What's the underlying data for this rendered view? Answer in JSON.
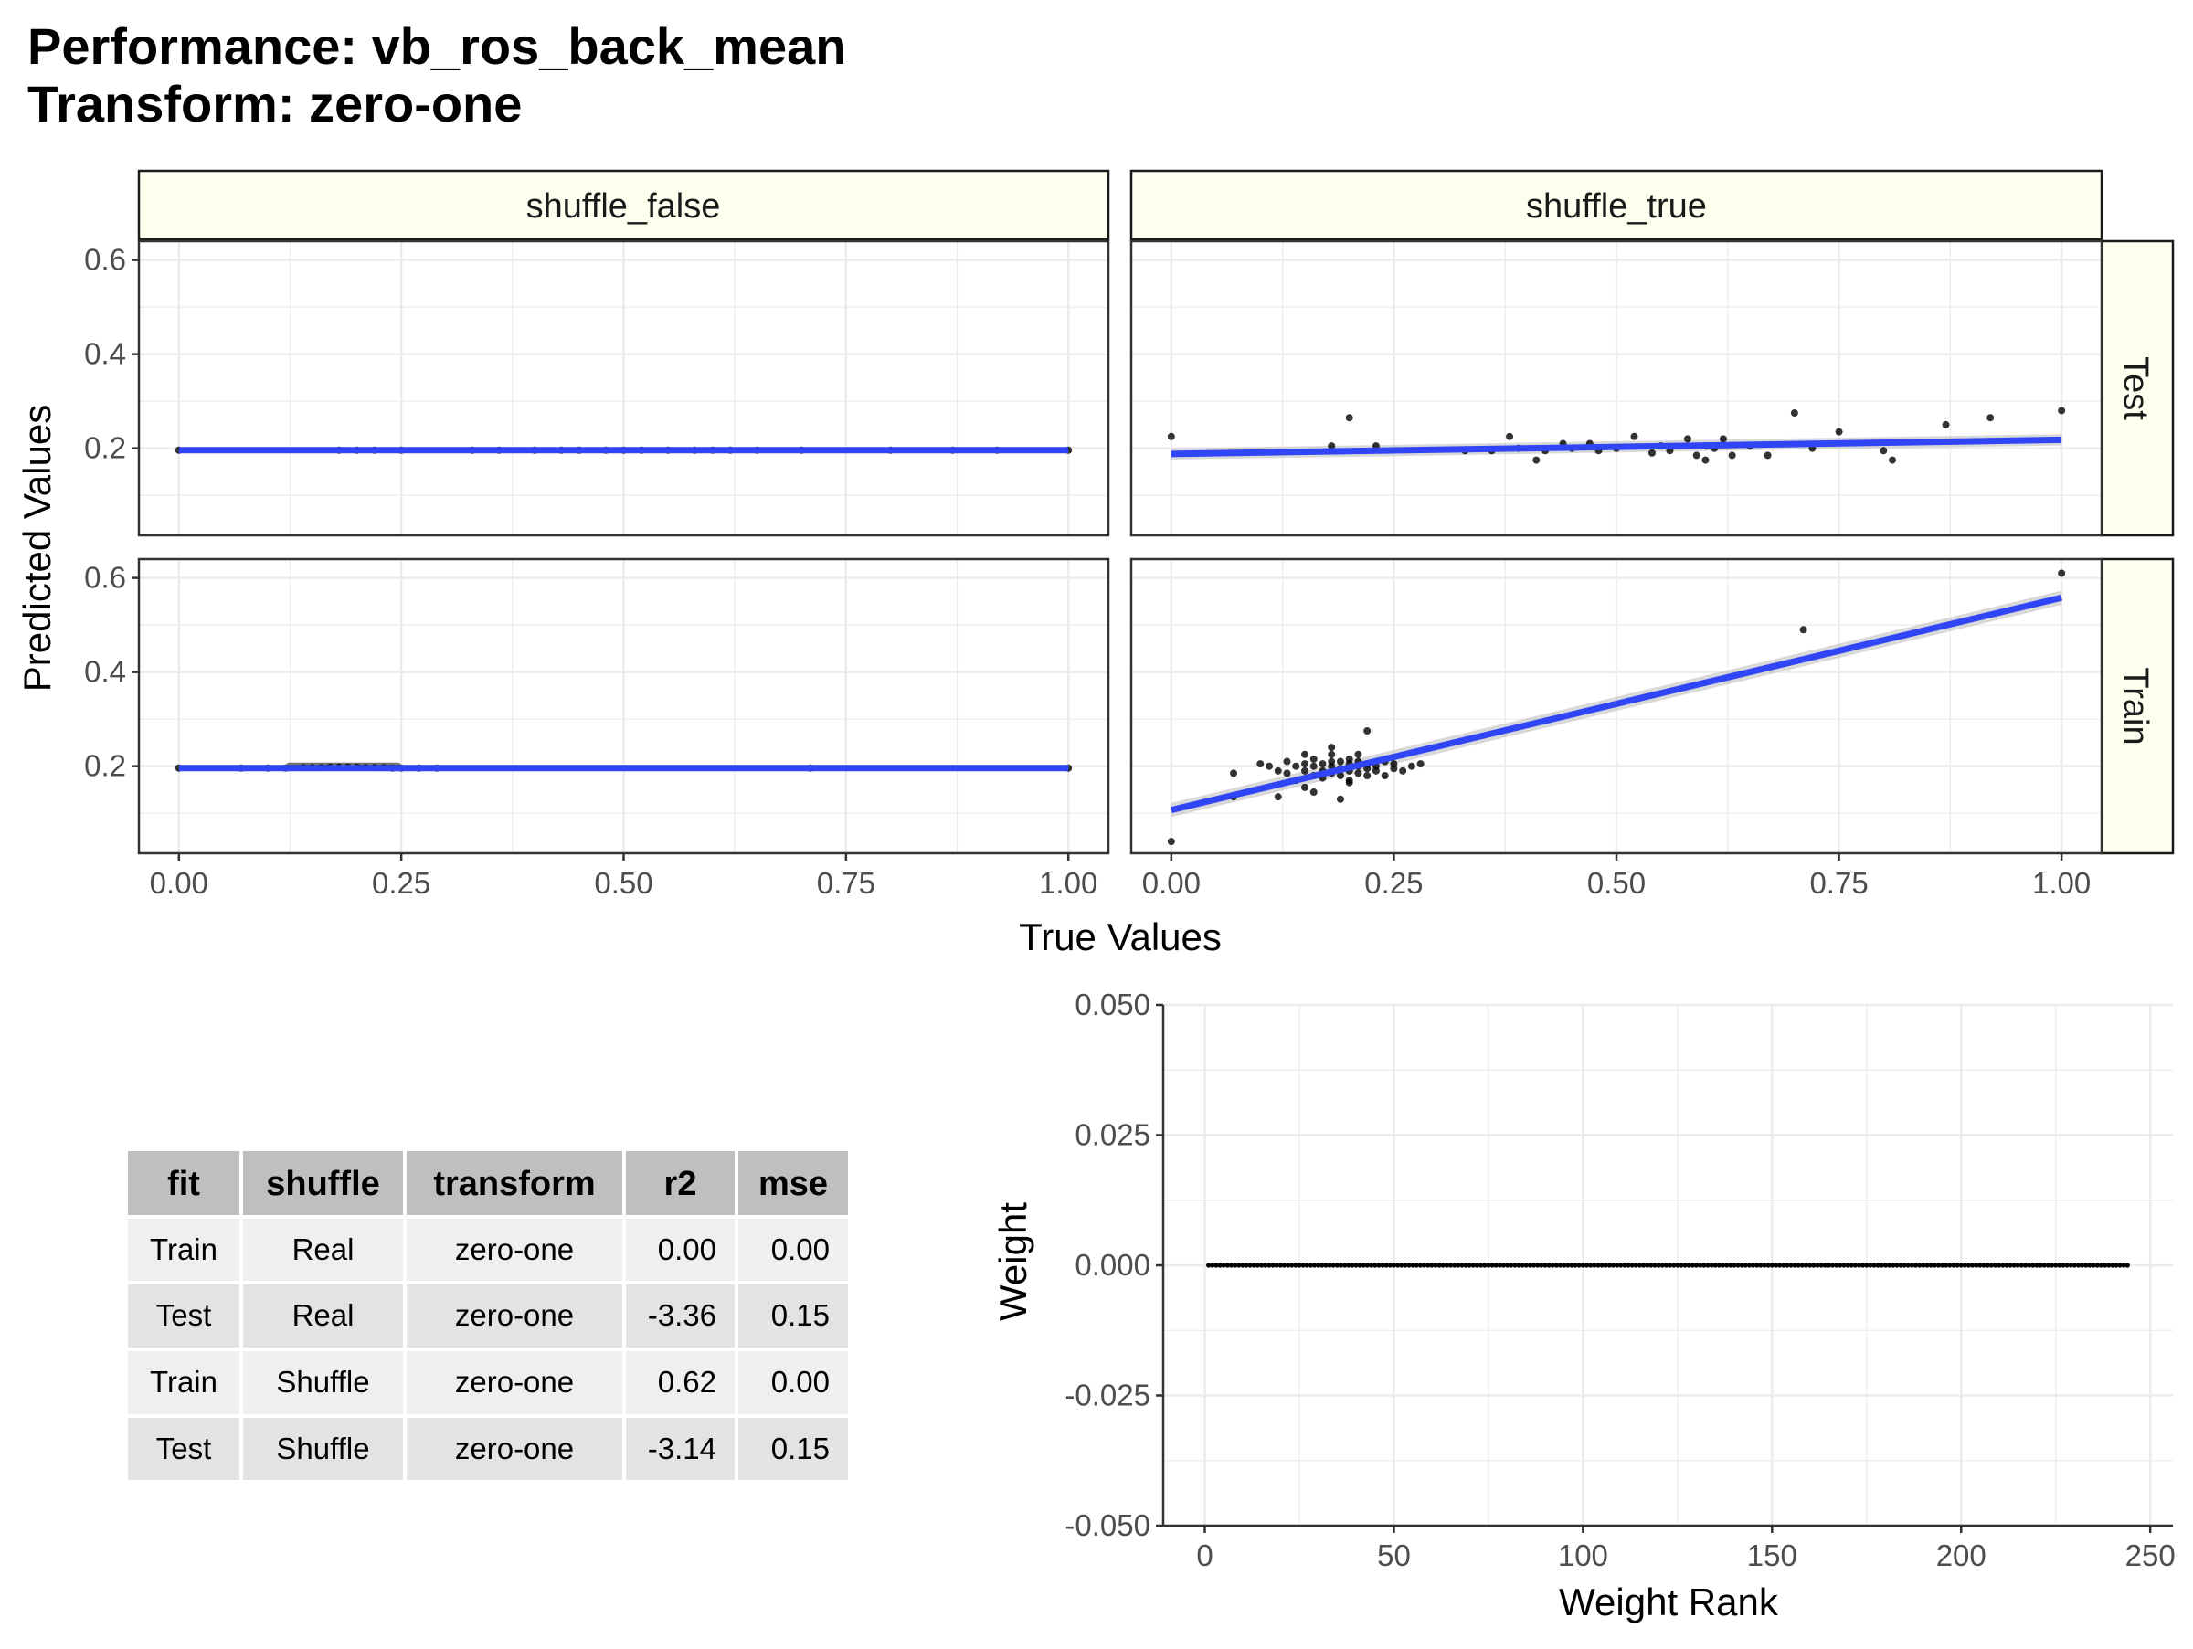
{
  "title": {
    "line1": "Performance: vb_ros_back_mean",
    "line2": "Transform: zero-one"
  },
  "facets": {
    "columns": [
      "shuffle_false",
      "shuffle_true"
    ],
    "rows": [
      "Test",
      "Train"
    ],
    "xlabel": "True Values",
    "ylabel": "Predicted Values",
    "x_ticks": [
      "0.00",
      "0.25",
      "0.50",
      "0.75",
      "1.00"
    ],
    "y_ticks": [
      "0.2",
      "0.4",
      "0.6"
    ]
  },
  "weights": {
    "xlabel": "Weight Rank",
    "ylabel": "Weight",
    "x_ticks": [
      "0",
      "50",
      "100",
      "150",
      "200",
      "250"
    ],
    "y_ticks": [
      "0.050",
      "0.025",
      "0.000",
      "-0.025",
      "-0.050"
    ]
  },
  "table": {
    "headers": [
      "fit",
      "shuffle",
      "transform",
      "r2",
      "mse"
    ],
    "rows": [
      [
        "Train",
        "Real",
        "zero-one",
        "0.00",
        "0.00"
      ],
      [
        "Test",
        "Real",
        "zero-one",
        "-3.36",
        "0.15"
      ],
      [
        "Train",
        "Shuffle",
        "zero-one",
        "0.62",
        "0.00"
      ],
      [
        "Test",
        "Shuffle",
        "zero-one",
        "-3.14",
        "0.15"
      ]
    ]
  },
  "colors": {
    "fit_line": "#3045f5",
    "points": "#000000",
    "strip_fill": "#fffff0",
    "grid": "#ebebeb",
    "ribbon": "#bfbfbf"
  },
  "chart_data": [
    {
      "type": "scatter",
      "facet": {
        "column": "shuffle_false",
        "row": "Test"
      },
      "xlim": [
        -0.045,
        1.045
      ],
      "ylim": [
        0.015,
        0.64
      ],
      "x": [
        0.0,
        0.18,
        0.2,
        0.22,
        0.25,
        0.33,
        0.36,
        0.4,
        0.43,
        0.45,
        0.48,
        0.5,
        0.52,
        0.55,
        0.58,
        0.6,
        0.62,
        0.65,
        0.7,
        0.8,
        0.87,
        0.92,
        1.0
      ],
      "y": [
        0.196,
        0.196,
        0.196,
        0.196,
        0.196,
        0.196,
        0.196,
        0.196,
        0.196,
        0.196,
        0.196,
        0.196,
        0.196,
        0.196,
        0.196,
        0.196,
        0.196,
        0.196,
        0.196,
        0.196,
        0.196,
        0.196,
        0.196
      ],
      "fit": {
        "x": [
          0.0,
          1.0
        ],
        "y": [
          0.196,
          0.196
        ]
      }
    },
    {
      "type": "scatter",
      "facet": {
        "column": "shuffle_true",
        "row": "Test"
      },
      "xlim": [
        -0.045,
        1.045
      ],
      "ylim": [
        0.015,
        0.64
      ],
      "x": [
        0.0,
        0.18,
        0.2,
        0.23,
        0.33,
        0.36,
        0.38,
        0.39,
        0.41,
        0.42,
        0.44,
        0.45,
        0.47,
        0.48,
        0.5,
        0.52,
        0.54,
        0.55,
        0.56,
        0.58,
        0.59,
        0.6,
        0.6,
        0.61,
        0.62,
        0.63,
        0.65,
        0.67,
        0.7,
        0.72,
        0.75,
        0.8,
        0.81,
        0.87,
        0.92,
        1.0
      ],
      "y": [
        0.225,
        0.205,
        0.265,
        0.205,
        0.195,
        0.195,
        0.225,
        0.2,
        0.175,
        0.195,
        0.21,
        0.2,
        0.21,
        0.195,
        0.2,
        0.225,
        0.19,
        0.205,
        0.195,
        0.22,
        0.185,
        0.175,
        0.205,
        0.2,
        0.22,
        0.185,
        0.205,
        0.185,
        0.275,
        0.2,
        0.235,
        0.195,
        0.175,
        0.25,
        0.265,
        0.28
      ],
      "fit": {
        "x": [
          0.0,
          1.0
        ],
        "y": [
          0.188,
          0.218
        ],
        "se": 0.012
      }
    },
    {
      "type": "scatter",
      "facet": {
        "column": "shuffle_false",
        "row": "Train"
      },
      "xlim": [
        -0.045,
        1.045
      ],
      "ylim": [
        0.015,
        0.64
      ],
      "x": [
        0.0,
        0.07,
        0.1,
        0.12,
        0.14,
        0.15,
        0.16,
        0.17,
        0.18,
        0.19,
        0.2,
        0.21,
        0.22,
        0.23,
        0.24,
        0.25,
        0.27,
        0.29,
        0.71,
        1.0
      ],
      "y": [
        0.196,
        0.196,
        0.196,
        0.196,
        0.197,
        0.197,
        0.197,
        0.198,
        0.198,
        0.198,
        0.198,
        0.197,
        0.197,
        0.197,
        0.196,
        0.196,
        0.196,
        0.196,
        0.196,
        0.196
      ],
      "fit": {
        "x": [
          0.0,
          1.0
        ],
        "y": [
          0.196,
          0.196
        ]
      }
    },
    {
      "type": "scatter",
      "facet": {
        "column": "shuffle_true",
        "row": "Train"
      },
      "xlim": [
        -0.045,
        1.045
      ],
      "ylim": [
        0.015,
        0.64
      ],
      "x": [
        0.0,
        0.07,
        0.07,
        0.1,
        0.11,
        0.12,
        0.12,
        0.13,
        0.13,
        0.14,
        0.14,
        0.15,
        0.15,
        0.15,
        0.16,
        0.16,
        0.16,
        0.17,
        0.17,
        0.17,
        0.18,
        0.18,
        0.18,
        0.18,
        0.19,
        0.19,
        0.19,
        0.2,
        0.2,
        0.2,
        0.2,
        0.21,
        0.21,
        0.21,
        0.22,
        0.22,
        0.22,
        0.23,
        0.23,
        0.24,
        0.24,
        0.25,
        0.25,
        0.26,
        0.27,
        0.28,
        0.15,
        0.16,
        0.18,
        0.2,
        0.21,
        0.19,
        0.22,
        0.71,
        1.0
      ],
      "y": [
        0.04,
        0.185,
        0.135,
        0.205,
        0.2,
        0.19,
        0.135,
        0.185,
        0.21,
        0.2,
        0.17,
        0.19,
        0.205,
        0.225,
        0.18,
        0.2,
        0.215,
        0.19,
        0.205,
        0.175,
        0.2,
        0.21,
        0.185,
        0.225,
        0.195,
        0.21,
        0.18,
        0.19,
        0.205,
        0.215,
        0.17,
        0.2,
        0.185,
        0.21,
        0.195,
        0.205,
        0.275,
        0.19,
        0.2,
        0.21,
        0.18,
        0.195,
        0.205,
        0.19,
        0.2,
        0.205,
        0.155,
        0.145,
        0.24,
        0.165,
        0.225,
        0.13,
        0.18,
        0.49,
        0.61
      ],
      "fit": {
        "x": [
          0.0,
          1.0
        ],
        "y": [
          0.107,
          0.558
        ],
        "se": 0.015
      }
    },
    {
      "type": "scatter",
      "xlabel": "Weight Rank",
      "ylabel": "Weight",
      "xlim": [
        -11,
        256
      ],
      "ylim": [
        -0.05,
        0.05
      ],
      "n_points": 244,
      "x_range": [
        1,
        244
      ],
      "y_value": 0.0
    }
  ]
}
